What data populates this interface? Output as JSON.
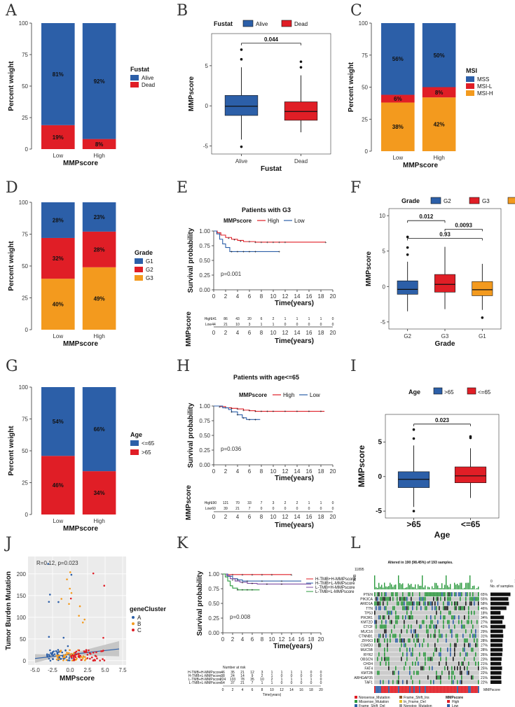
{
  "panel_labels": [
    "A",
    "B",
    "C",
    "D",
    "E",
    "F",
    "G",
    "H",
    "I",
    "J",
    "K",
    "L"
  ],
  "colors": {
    "blue": "#2c5fa8",
    "red": "#e01e26",
    "orange": "#f39a1e",
    "green": "#2b9a3e",
    "purple": "#7b4aa0",
    "gray": "#cccccc"
  },
  "chart_data": [
    {
      "panel": "A",
      "type": "bar",
      "stacked": true,
      "categories": [
        "Low",
        "High"
      ],
      "series": [
        {
          "name": "Dead",
          "values": [
            19,
            8
          ]
        },
        {
          "name": "Alive",
          "values": [
            81,
            92
          ]
        }
      ],
      "labels": [
        [
          "19%",
          "81%"
        ],
        [
          "8%",
          "92%"
        ]
      ],
      "xlabel": "MMPscore",
      "ylabel": "Percent weight",
      "yticks": [
        "0",
        "25",
        "50",
        "75",
        "100"
      ],
      "legend_title": "Fustat",
      "legend": [
        "Alive",
        "Dead"
      ]
    },
    {
      "panel": "B",
      "type": "box",
      "legend_title": "Fustat",
      "legend": [
        "Alive",
        "Dead"
      ],
      "categories": [
        "Alive",
        "Dead"
      ],
      "boxes": [
        {
          "q1": -1.2,
          "med": -0.05,
          "q3": 1.3,
          "lo": -4.2,
          "hi": 4.8,
          "out": [
            5.8,
            7,
            -5.1
          ]
        },
        {
          "q1": -1.8,
          "med": -0.7,
          "q3": 0.5,
          "lo": -3.3,
          "hi": 3.8,
          "out": [
            5.5,
            4.8
          ]
        }
      ],
      "pvalue": "0.044",
      "yticks": [
        "-5",
        "0",
        "5"
      ],
      "ylabel": "MMPscore",
      "xlabel": "Fustat"
    },
    {
      "panel": "C",
      "type": "bar",
      "stacked": true,
      "categories": [
        "Low",
        "High"
      ],
      "series": [
        {
          "name": "MSI-H",
          "values": [
            38,
            42
          ]
        },
        {
          "name": "MSI-L",
          "values": [
            6,
            8
          ]
        },
        {
          "name": "MSS",
          "values": [
            56,
            50
          ]
        }
      ],
      "labels": [
        [
          "38%",
          "6%",
          "56%"
        ],
        [
          "42%",
          "8%",
          "50%"
        ]
      ],
      "xlabel": "MMPscore",
      "ylabel": "Percent weight",
      "yticks": [
        "0",
        "25",
        "50",
        "75",
        "100"
      ],
      "legend_title": "MSI",
      "legend": [
        "MSS",
        "MSI-L",
        "MSI-H"
      ]
    },
    {
      "panel": "D",
      "type": "bar",
      "stacked": true,
      "categories": [
        "Low",
        "High"
      ],
      "series": [
        {
          "name": "G3",
          "values": [
            40,
            49
          ]
        },
        {
          "name": "G2",
          "values": [
            32,
            28
          ]
        },
        {
          "name": "G1",
          "values": [
            28,
            23
          ]
        }
      ],
      "labels": [
        [
          "40%",
          "32%",
          "28%"
        ],
        [
          "49%",
          "28%",
          "23%"
        ]
      ],
      "xlabel": "MMPscore",
      "ylabel": "Percent weight",
      "yticks": [
        "0",
        "25",
        "50",
        "75",
        "100"
      ],
      "legend_title": "Grade",
      "legend": [
        "G1",
        "G2",
        "G3"
      ]
    },
    {
      "panel": "E",
      "type": "line",
      "title": "Patients with G3",
      "legend_title": "MMPscore",
      "legend": [
        "High",
        "Low"
      ],
      "pvalue": "p=0.001",
      "ylabel": "Survival probability",
      "xlabel": "Time(years)",
      "xticks": [
        "0",
        "2",
        "4",
        "6",
        "8",
        "10",
        "12",
        "14",
        "16",
        "18",
        "20"
      ],
      "yticks": [
        "0.00",
        "0.25",
        "0.50",
        "0.75",
        "1.00"
      ],
      "risk_label": "MMPscore",
      "risk_rows": [
        {
          "name": "High",
          "values": [
            "141",
            "86",
            "43",
            "20",
            "6",
            "2",
            "1",
            "1",
            "1",
            "1",
            "0"
          ]
        },
        {
          "name": "Low",
          "values": [
            "44",
            "21",
            "10",
            "3",
            "1",
            "1",
            "0",
            "0",
            "0",
            "0",
            "0"
          ]
        }
      ]
    },
    {
      "panel": "F",
      "type": "box",
      "legend_title": "Grade",
      "legend": [
        "G2",
        "G3",
        "G1"
      ],
      "categories": [
        "G2",
        "G3",
        "G1"
      ],
      "boxes": [
        {
          "q1": -1.1,
          "med": -0.4,
          "q3": 0.8,
          "lo": -3.5,
          "hi": 3.5,
          "out": [
            5.5,
            7,
            4.5
          ]
        },
        {
          "q1": -0.8,
          "med": 0.3,
          "q3": 1.7,
          "lo": -3.2,
          "hi": 5.6,
          "out": []
        },
        {
          "q1": -1.3,
          "med": -0.45,
          "q3": 0.7,
          "lo": -3.3,
          "hi": 3.2,
          "out": [
            -4.4
          ]
        }
      ],
      "pvalues": [
        "0.012",
        "0.0093",
        "0.93"
      ],
      "yticks": [
        "-5",
        "0",
        "5",
        "10"
      ],
      "ylabel": "MMPscore",
      "xlabel": "Grade"
    },
    {
      "panel": "G",
      "type": "bar",
      "stacked": true,
      "categories": [
        "Low",
        "High"
      ],
      "series": [
        {
          "name": ">65",
          "values": [
            46,
            34
          ]
        },
        {
          "name": "<=65",
          "values": [
            54,
            66
          ]
        }
      ],
      "labels": [
        [
          "46%",
          "54%"
        ],
        [
          "34%",
          "66%"
        ]
      ],
      "xlabel": "MMPscore",
      "ylabel": "Percent weight",
      "yticks": [
        "0",
        "25",
        "50",
        "75",
        "100"
      ],
      "legend_title": "Age",
      "legend": [
        "<=65",
        ">65"
      ]
    },
    {
      "panel": "H",
      "type": "line",
      "title": "Patients with age<=65",
      "legend_title": "MMPscore",
      "legend": [
        "High",
        "Low"
      ],
      "pvalue": "p=0.036",
      "ylabel": "Survival probability",
      "xlabel": "Time(years)",
      "xticks": [
        "0",
        "2",
        "4",
        "6",
        "8",
        "10",
        "12",
        "14",
        "16",
        "18",
        "20"
      ],
      "yticks": [
        "0.00",
        "0.25",
        "0.50",
        "0.75",
        "1.00"
      ],
      "risk_label": "MMPscore",
      "risk_rows": [
        {
          "name": "High",
          "values": [
            "190",
            "121",
            "70",
            "33",
            "7",
            "3",
            "2",
            "2",
            "1",
            "1",
            "0"
          ]
        },
        {
          "name": "Low",
          "values": [
            "60",
            "39",
            "21",
            "7",
            "0",
            "0",
            "0",
            "0",
            "0",
            "0",
            "0"
          ]
        }
      ]
    },
    {
      "panel": "I",
      "type": "box",
      "legend_title": "Age",
      "legend": [
        ">65",
        "<=65"
      ],
      "categories": [
        ">65",
        "<=65"
      ],
      "boxes": [
        {
          "q1": -1.6,
          "med": -0.4,
          "q3": 0.7,
          "lo": -4.4,
          "hi": 4.5,
          "out": [
            5.5,
            6.8,
            -5
          ]
        },
        {
          "q1": -0.9,
          "med": 0.1,
          "q3": 1.4,
          "lo": -3.1,
          "hi": 4.1,
          "out": [
            5.6,
            5.8
          ]
        }
      ],
      "pvalue": "0.023",
      "yticks": [
        "-5",
        "0",
        "5"
      ],
      "ylabel": "MMPscore",
      "xlabel": "Age"
    },
    {
      "panel": "J",
      "type": "scatter",
      "annotation": "R=0.12, p=0.023",
      "legend_title": "geneCluster",
      "legend": [
        "A",
        "B",
        "C"
      ],
      "xticks": [
        "-5.0",
        "-2.5",
        "0.0",
        "2.5",
        "5.0",
        "7.5"
      ],
      "yticks": [
        "0",
        "50",
        "100",
        "150",
        "200"
      ],
      "xlabel": "MMPscore",
      "ylabel": "Tumor Burden Mutation"
    },
    {
      "panel": "K",
      "type": "line",
      "legend": [
        "H-TMB+H-MMPscore",
        "H-TMB+L-MMPscore",
        "L-TMB+H-MMPscore",
        "L-TMB+L-MMPscore"
      ],
      "pvalue": "p=0.008",
      "ylabel": "Survival probability",
      "xlabel": "Time(years)",
      "xticks": [
        "0",
        "2",
        "4",
        "6",
        "8",
        "10",
        "12",
        "14",
        "16",
        "18",
        "20"
      ],
      "yticks": [
        "0.00",
        "0.25",
        "0.50",
        "0.75",
        "1.00"
      ],
      "risk_title": "Number at risk",
      "risk_xlabel": "Time(years)",
      "risk_rows": [
        {
          "name": "H-TMB+H-MMPscore",
          "values": [
            "46",
            "35",
            "21",
            "12",
            "3",
            "1",
            "1",
            "1",
            "1",
            "0",
            "0"
          ]
        },
        {
          "name": "H-TMB+L-MMPscore",
          "values": [
            "38",
            "24",
            "14",
            "9",
            "2",
            "1",
            "0",
            "0",
            "0",
            "0",
            "0"
          ]
        },
        {
          "name": "L-TMB+H-MMPscore",
          "values": [
            "224",
            "133",
            "78",
            "35",
            "10",
            "2",
            "1",
            "1",
            "1",
            "1",
            "0"
          ]
        },
        {
          "name": "L-TMB+L-MMPscore",
          "values": [
            "54",
            "37",
            "21",
            "7",
            "1",
            "1",
            "0",
            "0",
            "0",
            "0",
            "0"
          ]
        }
      ]
    },
    {
      "panel": "L",
      "type": "heatmap",
      "title": "Altered in 190 (98.45%) of 193 samples.",
      "tmb_max": "11895",
      "tmb_label": "TMB",
      "genes": [
        "PTEN",
        "PIK3CA",
        "ARID1A",
        "TTN",
        "TP53",
        "PIK3R1",
        "KMT2D",
        "CTCF",
        "MUC16",
        "CTNNB1",
        "ZFHX3",
        "CSMD3",
        "MUC5B",
        "RYR2",
        "OBSCN",
        "CHD4",
        "FAT4",
        "KMT2B",
        "ARHGAP35",
        "TAF1"
      ],
      "percents": [
        "65%",
        "55%",
        "58%",
        "46%",
        "18%",
        "34%",
        "27%",
        "41%",
        "29%",
        "31%",
        "28%",
        "27%",
        "28%",
        "26%",
        "23%",
        "21%",
        "25%",
        "22%",
        "21%",
        "22%"
      ],
      "bar_scale": [
        "0",
        "165"
      ],
      "bar_label": "No. of samples",
      "row_label": "MMPscore",
      "legend": [
        "Nonsense_Mutation",
        "Missense_Mutation",
        "Frame_Shift_Del",
        "In_Frame_Ins",
        "Frame_Shift_Ins",
        "In_Frame_Del",
        "Nonstop_Mutation",
        "Multi_Hit"
      ],
      "legend_title": "MMPscore",
      "legend2": [
        "High",
        "Low"
      ]
    }
  ]
}
